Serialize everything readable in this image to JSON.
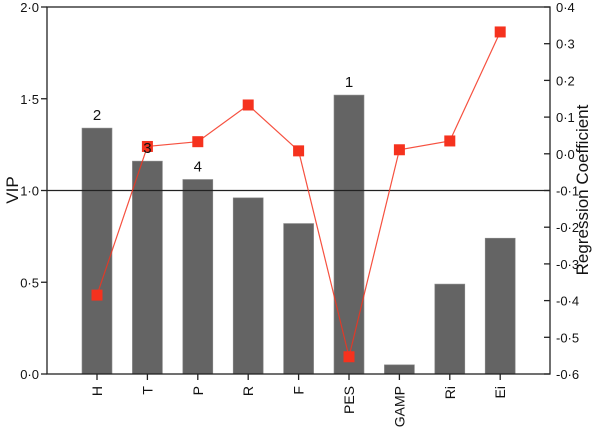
{
  "chart_data": {
    "type": "bar+line",
    "title": "",
    "categories": [
      "H",
      "T",
      "P",
      "R",
      "F",
      "PES",
      "GAMP",
      "Ri",
      "Ei"
    ],
    "series": [
      {
        "name": "VIP",
        "kind": "bar",
        "axis": "left",
        "color": "#646464",
        "values": [
          1.34,
          1.16,
          1.06,
          0.96,
          0.82,
          1.52,
          0.05,
          0.49,
          0.74
        ]
      },
      {
        "name": "Regression Coefficient",
        "kind": "line",
        "axis": "right",
        "color": "#f5321e",
        "values": [
          -0.385,
          0.02,
          0.033,
          0.133,
          0.008,
          -0.553,
          0.011,
          0.035,
          0.332
        ]
      }
    ],
    "rank_labels": [
      {
        "category": "PES",
        "label": "1"
      },
      {
        "category": "H",
        "label": "2"
      },
      {
        "category": "T",
        "label": "3"
      },
      {
        "category": "P",
        "label": "4"
      }
    ],
    "reference_line": {
      "axis": "left",
      "value": 1.0
    },
    "xlabel": "",
    "ylabel": "VIP",
    "y2label": "Regression Coefficient",
    "ylim": [
      0.0,
      2.0
    ],
    "y2lim": [
      -0.6,
      0.4
    ],
    "yticks": [
      "0·0",
      "0·5",
      "1·0",
      "1·5",
      "2·0"
    ],
    "y2ticks": [
      "-0·6",
      "-0·5",
      "-0·4",
      "-0·3",
      "-0·2",
      "-0·1",
      "0·0",
      "0·1",
      "0·2",
      "0·3",
      "0·4"
    ],
    "grid": false,
    "legend": null
  }
}
